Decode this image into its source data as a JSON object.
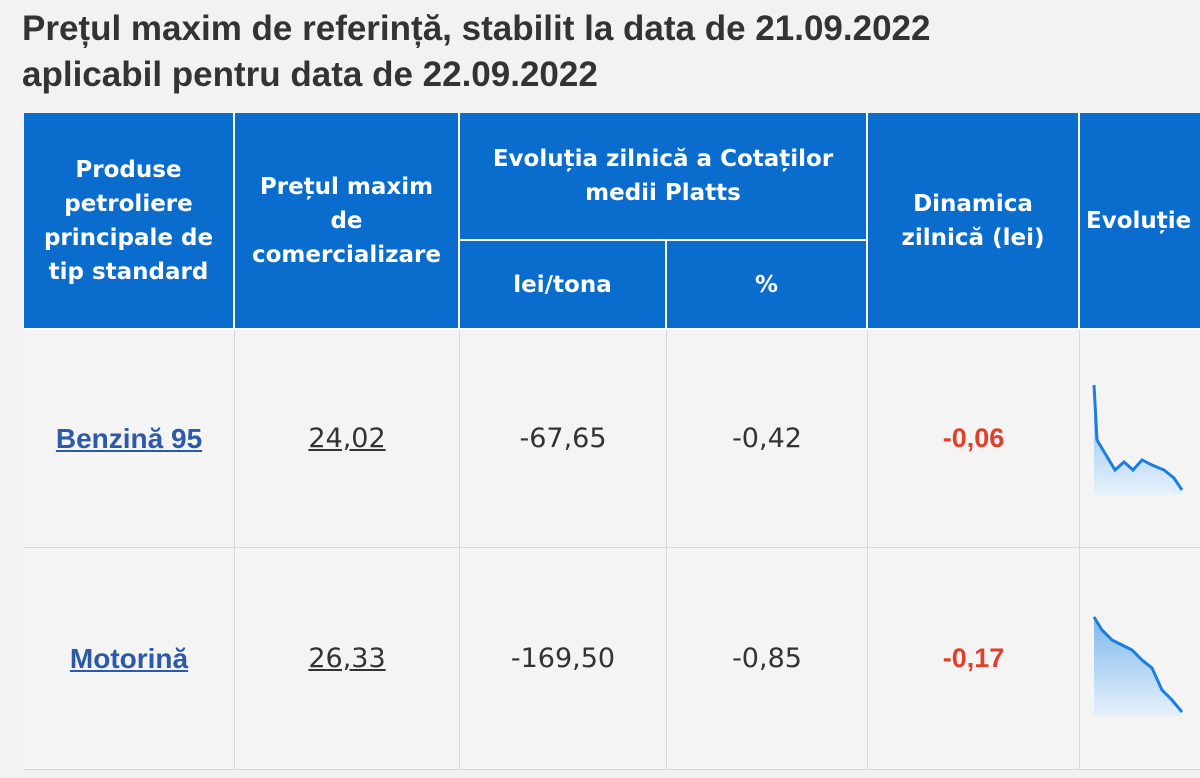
{
  "title": [
    "Prețul maxim de referință, stabilit la data de 21.09.2022",
    "aplicabil pentru data de 22.09.2022"
  ],
  "table": {
    "header": {
      "product": "Produse petroliere principale de tip standard",
      "price": "Prețul maxim de comercializare",
      "platts": "Evoluția zilnică a Cotaților medii Platts",
      "lei_tona": "lei/tona",
      "percent": "%",
      "dynamics": "Dinamica zilnică (lei)",
      "evolution": "Evoluție"
    },
    "rows": [
      [
        "Benzină 95",
        "24,02",
        "-67,65",
        "-0,42",
        "-0,06"
      ],
      [
        "Motorină",
        "26,33",
        "-169,50",
        "-0,85",
        "-0,17"
      ]
    ]
  }
}
